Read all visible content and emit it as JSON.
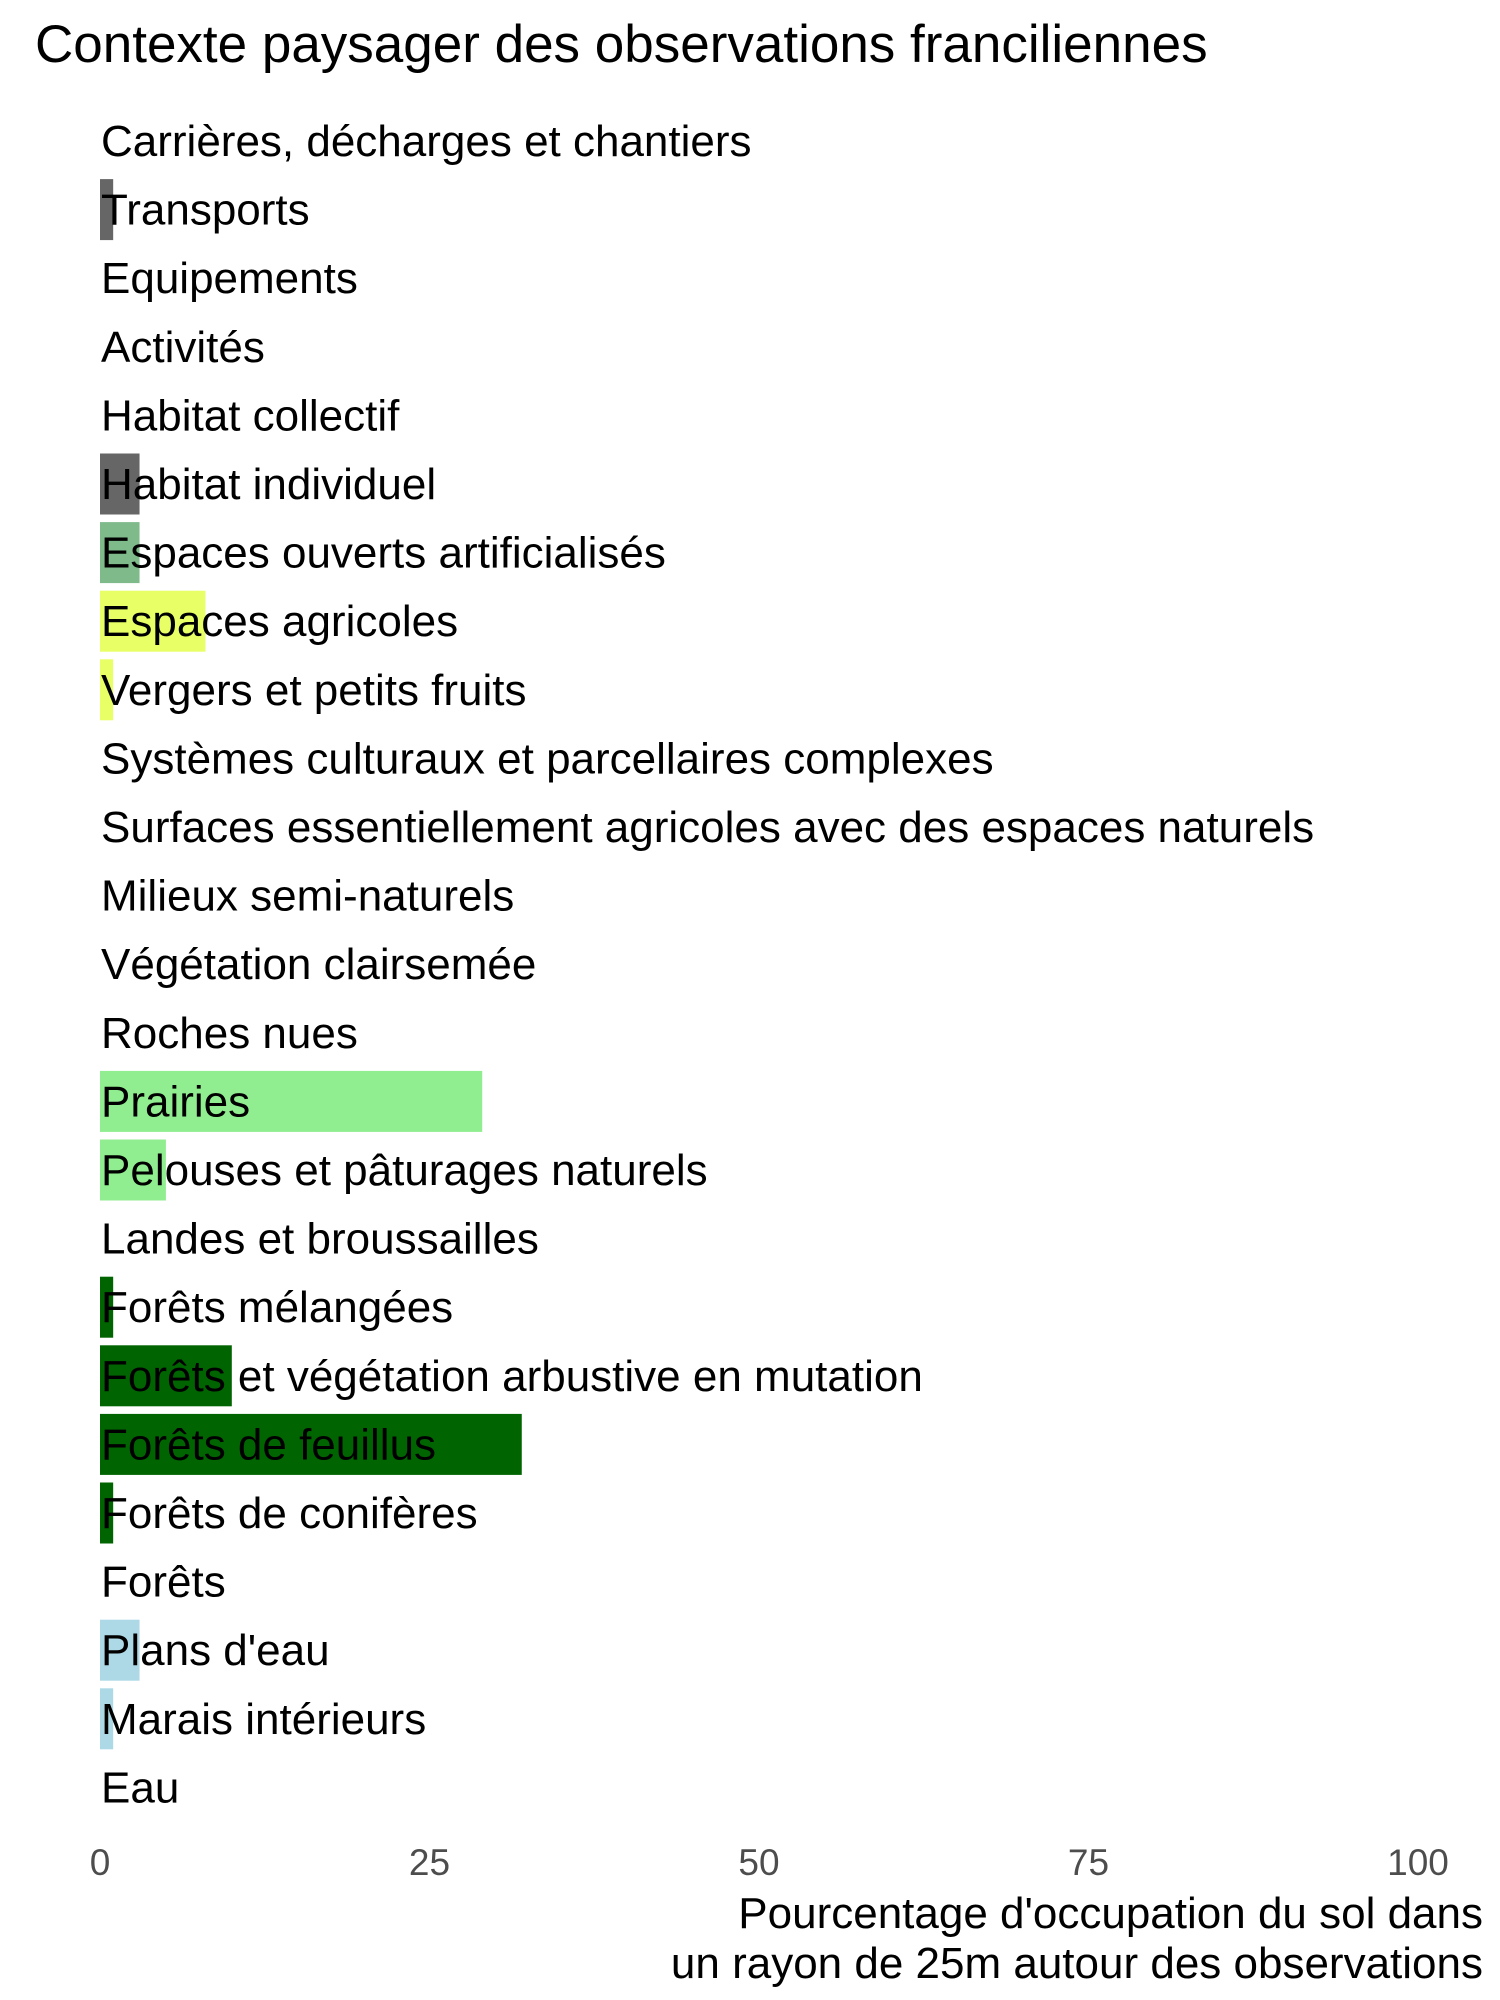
{
  "chart_data": {
    "type": "bar",
    "orientation": "horizontal",
    "title": "Contexte paysager des observations franciliennes",
    "xlabel_lines": [
      "Pourcentage d'occupation du sol dans",
      "un rayon de 25m autour des observations"
    ],
    "ylabel": "",
    "xlim": [
      0,
      100
    ],
    "xticks": [
      "0",
      "25",
      "50",
      "75",
      "100"
    ],
    "grid": false,
    "categories": [
      "Carrières, décharges et chantiers",
      "Transports",
      "Equipements",
      "Activités",
      "Habitat collectif",
      "Habitat individuel",
      "Espaces ouverts artificialisés",
      "Espaces agricoles",
      "Vergers et petits fruits",
      "Systèmes culturaux et parcellaires complexes",
      "Surfaces essentiellement agricoles avec des espaces naturels",
      "Milieux semi-naturels",
      "Végétation clairsemée",
      "Roches nues",
      "Prairies",
      "Pelouses et pâturages naturels",
      "Landes et broussailles",
      "Forêts mélangées",
      "Forêts et végétation arbustive en mutation",
      "Forêts de feuillus",
      "Forêts de conifères",
      "Forêts",
      "Plans d'eau",
      "Marais intérieurs",
      "Eau"
    ],
    "values": [
      0,
      1,
      0,
      0,
      0,
      3,
      3,
      8,
      1,
      0,
      0,
      0,
      0,
      0,
      29,
      5,
      0,
      1,
      10,
      32,
      1,
      0,
      3,
      1,
      0
    ],
    "colors": [
      "#666666",
      "#666666",
      "#666666",
      "#666666",
      "#666666",
      "#666666",
      "#7fba8a",
      "#e8ff66",
      "#e8ff66",
      "#e8ff66",
      "#e8ff66",
      "#90ee90",
      "#90ee90",
      "#90ee90",
      "#90ee90",
      "#90ee90",
      "#90ee90",
      "#006400",
      "#006400",
      "#006400",
      "#006400",
      "#006400",
      "#add8e6",
      "#add8e6",
      "#add8e6"
    ]
  }
}
